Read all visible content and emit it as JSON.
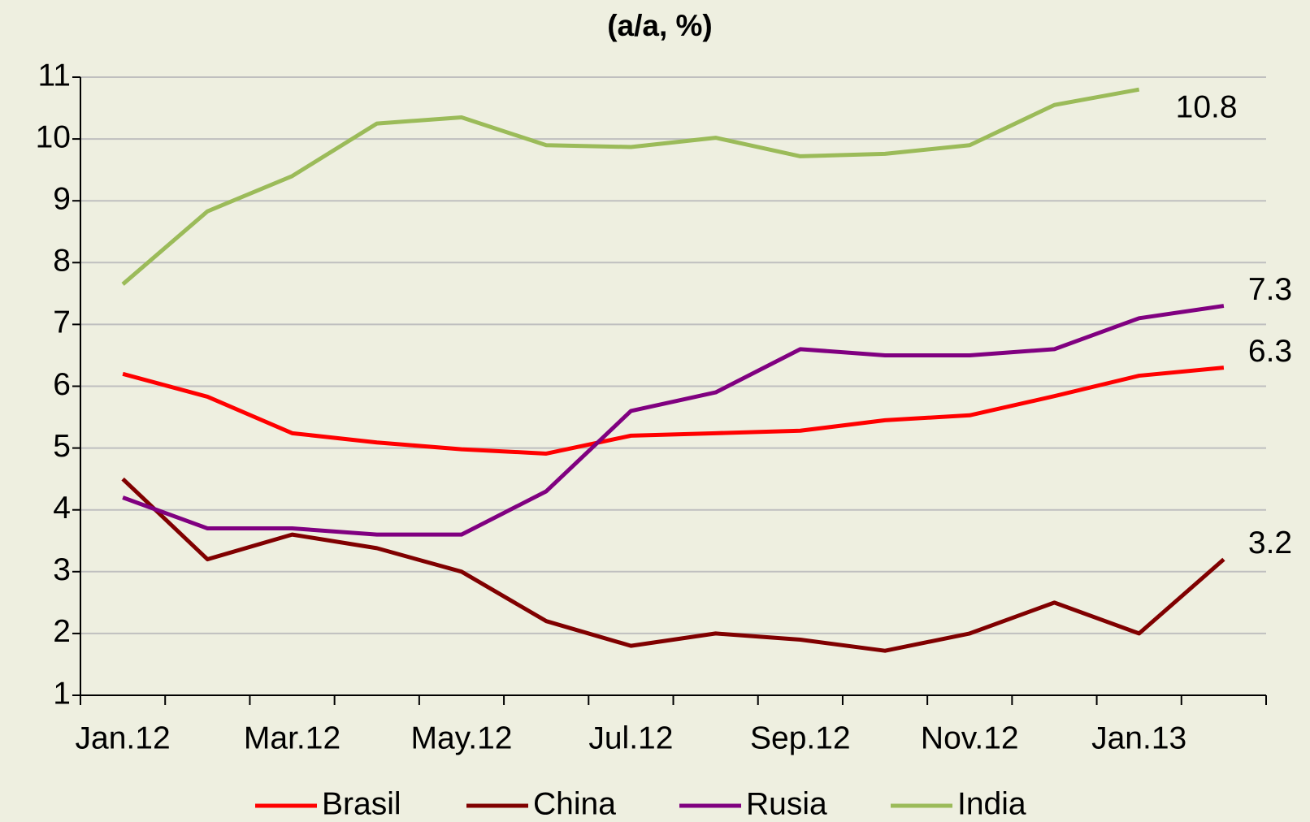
{
  "chart_data": {
    "type": "line",
    "title": "(a/a, %)",
    "categories": [
      "Jan.12",
      null,
      "Mar.12",
      null,
      "May.12",
      null,
      "Jul.12",
      null,
      "Sep.12",
      null,
      "Nov.12",
      null,
      "Jan.13",
      null
    ],
    "series": [
      {
        "name": "Brasil",
        "color": "#ff0000",
        "values": [
          6.2,
          5.83,
          5.24,
          5.09,
          4.98,
          4.91,
          5.2,
          5.24,
          5.28,
          5.45,
          5.53,
          5.84,
          6.17,
          6.3
        ]
      },
      {
        "name": "China",
        "color": "#800000",
        "values": [
          4.5,
          3.2,
          3.6,
          3.38,
          3.0,
          2.2,
          1.8,
          2.0,
          1.9,
          1.72,
          2.0,
          2.5,
          2.0,
          3.2
        ]
      },
      {
        "name": "Rusia",
        "color": "#800080",
        "values": [
          4.2,
          3.7,
          3.7,
          3.6,
          3.6,
          4.3,
          5.6,
          5.9,
          6.6,
          6.5,
          6.5,
          6.6,
          7.1,
          7.3
        ]
      },
      {
        "name": "India",
        "color": "#9bbb59",
        "values": [
          7.65,
          8.83,
          9.4,
          10.25,
          10.35,
          9.9,
          9.87,
          10.02,
          9.72,
          9.76,
          9.9,
          10.55,
          10.8,
          null
        ]
      }
    ],
    "ylim": [
      1,
      11
    ],
    "yticks": [
      1,
      2,
      3,
      4,
      5,
      6,
      7,
      8,
      9,
      10,
      11
    ],
    "grid": true,
    "legend": "bottom"
  }
}
